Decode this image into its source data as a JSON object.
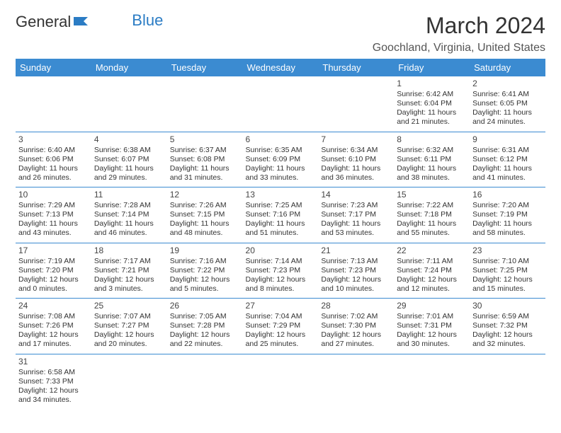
{
  "logo": {
    "part1": "General",
    "part2": "Blue"
  },
  "title": "March 2024",
  "location": "Goochland, Virginia, United States",
  "headers": [
    "Sunday",
    "Monday",
    "Tuesday",
    "Wednesday",
    "Thursday",
    "Friday",
    "Saturday"
  ],
  "colors": {
    "header_bg": "#3b8bd1",
    "header_text": "#ffffff",
    "row_border": "#3b8bd1",
    "logo_blue": "#2b7cc4",
    "text": "#333333"
  },
  "fonts": {
    "month_size": 32,
    "location_size": 16,
    "header_size": 13,
    "day_size": 12,
    "event_size": 10.5
  },
  "weeks": [
    [
      null,
      null,
      null,
      null,
      null,
      {
        "d": "1",
        "r": "Sunrise: 6:42 AM",
        "s": "Sunset: 6:04 PM",
        "l1": "Daylight: 11 hours",
        "l2": "and 21 minutes."
      },
      {
        "d": "2",
        "r": "Sunrise: 6:41 AM",
        "s": "Sunset: 6:05 PM",
        "l1": "Daylight: 11 hours",
        "l2": "and 24 minutes."
      }
    ],
    [
      {
        "d": "3",
        "r": "Sunrise: 6:40 AM",
        "s": "Sunset: 6:06 PM",
        "l1": "Daylight: 11 hours",
        "l2": "and 26 minutes."
      },
      {
        "d": "4",
        "r": "Sunrise: 6:38 AM",
        "s": "Sunset: 6:07 PM",
        "l1": "Daylight: 11 hours",
        "l2": "and 29 minutes."
      },
      {
        "d": "5",
        "r": "Sunrise: 6:37 AM",
        "s": "Sunset: 6:08 PM",
        "l1": "Daylight: 11 hours",
        "l2": "and 31 minutes."
      },
      {
        "d": "6",
        "r": "Sunrise: 6:35 AM",
        "s": "Sunset: 6:09 PM",
        "l1": "Daylight: 11 hours",
        "l2": "and 33 minutes."
      },
      {
        "d": "7",
        "r": "Sunrise: 6:34 AM",
        "s": "Sunset: 6:10 PM",
        "l1": "Daylight: 11 hours",
        "l2": "and 36 minutes."
      },
      {
        "d": "8",
        "r": "Sunrise: 6:32 AM",
        "s": "Sunset: 6:11 PM",
        "l1": "Daylight: 11 hours",
        "l2": "and 38 minutes."
      },
      {
        "d": "9",
        "r": "Sunrise: 6:31 AM",
        "s": "Sunset: 6:12 PM",
        "l1": "Daylight: 11 hours",
        "l2": "and 41 minutes."
      }
    ],
    [
      {
        "d": "10",
        "r": "Sunrise: 7:29 AM",
        "s": "Sunset: 7:13 PM",
        "l1": "Daylight: 11 hours",
        "l2": "and 43 minutes."
      },
      {
        "d": "11",
        "r": "Sunrise: 7:28 AM",
        "s": "Sunset: 7:14 PM",
        "l1": "Daylight: 11 hours",
        "l2": "and 46 minutes."
      },
      {
        "d": "12",
        "r": "Sunrise: 7:26 AM",
        "s": "Sunset: 7:15 PM",
        "l1": "Daylight: 11 hours",
        "l2": "and 48 minutes."
      },
      {
        "d": "13",
        "r": "Sunrise: 7:25 AM",
        "s": "Sunset: 7:16 PM",
        "l1": "Daylight: 11 hours",
        "l2": "and 51 minutes."
      },
      {
        "d": "14",
        "r": "Sunrise: 7:23 AM",
        "s": "Sunset: 7:17 PM",
        "l1": "Daylight: 11 hours",
        "l2": "and 53 minutes."
      },
      {
        "d": "15",
        "r": "Sunrise: 7:22 AM",
        "s": "Sunset: 7:18 PM",
        "l1": "Daylight: 11 hours",
        "l2": "and 55 minutes."
      },
      {
        "d": "16",
        "r": "Sunrise: 7:20 AM",
        "s": "Sunset: 7:19 PM",
        "l1": "Daylight: 11 hours",
        "l2": "and 58 minutes."
      }
    ],
    [
      {
        "d": "17",
        "r": "Sunrise: 7:19 AM",
        "s": "Sunset: 7:20 PM",
        "l1": "Daylight: 12 hours",
        "l2": "and 0 minutes."
      },
      {
        "d": "18",
        "r": "Sunrise: 7:17 AM",
        "s": "Sunset: 7:21 PM",
        "l1": "Daylight: 12 hours",
        "l2": "and 3 minutes."
      },
      {
        "d": "19",
        "r": "Sunrise: 7:16 AM",
        "s": "Sunset: 7:22 PM",
        "l1": "Daylight: 12 hours",
        "l2": "and 5 minutes."
      },
      {
        "d": "20",
        "r": "Sunrise: 7:14 AM",
        "s": "Sunset: 7:23 PM",
        "l1": "Daylight: 12 hours",
        "l2": "and 8 minutes."
      },
      {
        "d": "21",
        "r": "Sunrise: 7:13 AM",
        "s": "Sunset: 7:23 PM",
        "l1": "Daylight: 12 hours",
        "l2": "and 10 minutes."
      },
      {
        "d": "22",
        "r": "Sunrise: 7:11 AM",
        "s": "Sunset: 7:24 PM",
        "l1": "Daylight: 12 hours",
        "l2": "and 12 minutes."
      },
      {
        "d": "23",
        "r": "Sunrise: 7:10 AM",
        "s": "Sunset: 7:25 PM",
        "l1": "Daylight: 12 hours",
        "l2": "and 15 minutes."
      }
    ],
    [
      {
        "d": "24",
        "r": "Sunrise: 7:08 AM",
        "s": "Sunset: 7:26 PM",
        "l1": "Daylight: 12 hours",
        "l2": "and 17 minutes."
      },
      {
        "d": "25",
        "r": "Sunrise: 7:07 AM",
        "s": "Sunset: 7:27 PM",
        "l1": "Daylight: 12 hours",
        "l2": "and 20 minutes."
      },
      {
        "d": "26",
        "r": "Sunrise: 7:05 AM",
        "s": "Sunset: 7:28 PM",
        "l1": "Daylight: 12 hours",
        "l2": "and 22 minutes."
      },
      {
        "d": "27",
        "r": "Sunrise: 7:04 AM",
        "s": "Sunset: 7:29 PM",
        "l1": "Daylight: 12 hours",
        "l2": "and 25 minutes."
      },
      {
        "d": "28",
        "r": "Sunrise: 7:02 AM",
        "s": "Sunset: 7:30 PM",
        "l1": "Daylight: 12 hours",
        "l2": "and 27 minutes."
      },
      {
        "d": "29",
        "r": "Sunrise: 7:01 AM",
        "s": "Sunset: 7:31 PM",
        "l1": "Daylight: 12 hours",
        "l2": "and 30 minutes."
      },
      {
        "d": "30",
        "r": "Sunrise: 6:59 AM",
        "s": "Sunset: 7:32 PM",
        "l1": "Daylight: 12 hours",
        "l2": "and 32 minutes."
      }
    ],
    [
      {
        "d": "31",
        "r": "Sunrise: 6:58 AM",
        "s": "Sunset: 7:33 PM",
        "l1": "Daylight: 12 hours",
        "l2": "and 34 minutes."
      },
      null,
      null,
      null,
      null,
      null,
      null
    ]
  ]
}
